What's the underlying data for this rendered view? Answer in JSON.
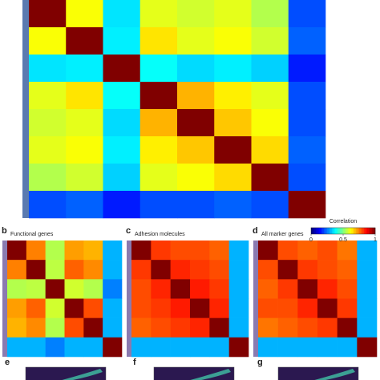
{
  "chart_data": [
    {
      "type": "heatmap",
      "colormap": "jet",
      "values": [
        [
          1,
          0.62,
          0.35,
          0.6,
          0.58,
          0.6,
          0.55,
          0.2
        ],
        [
          0.62,
          1,
          0.36,
          0.65,
          0.6,
          0.62,
          0.58,
          0.22
        ],
        [
          0.35,
          0.36,
          1,
          0.38,
          0.34,
          0.36,
          0.33,
          0.15
        ],
        [
          0.6,
          0.65,
          0.38,
          1,
          0.7,
          0.64,
          0.6,
          0.2
        ],
        [
          0.58,
          0.6,
          0.34,
          0.7,
          1,
          0.68,
          0.62,
          0.2
        ],
        [
          0.6,
          0.62,
          0.36,
          0.64,
          0.68,
          1,
          0.66,
          0.22
        ],
        [
          0.55,
          0.58,
          0.33,
          0.6,
          0.62,
          0.66,
          1,
          0.2
        ],
        [
          0.2,
          0.22,
          0.15,
          0.2,
          0.2,
          0.22,
          0.2,
          1
        ]
      ],
      "colorbar": {
        "title": "Correlation",
        "lim": [
          0,
          1
        ],
        "ticks": [
          0,
          0.5,
          1
        ]
      }
    },
    {
      "type": "heatmap",
      "panel": "b",
      "title": "Functional genes",
      "colormap": "jet",
      "values": [
        [
          1,
          0.75,
          0.55,
          0.72,
          0.7,
          0.3
        ],
        [
          0.75,
          1,
          0.56,
          0.78,
          0.74,
          0.3
        ],
        [
          0.55,
          0.56,
          1,
          0.58,
          0.55,
          0.25
        ],
        [
          0.72,
          0.78,
          0.58,
          1,
          0.8,
          0.3
        ],
        [
          0.7,
          0.74,
          0.55,
          0.8,
          1,
          0.3
        ],
        [
          0.3,
          0.3,
          0.25,
          0.3,
          0.3,
          1
        ]
      ]
    },
    {
      "type": "heatmap",
      "panel": "c",
      "title": "Adhesion molecules",
      "colormap": "jet",
      "values": [
        [
          1,
          0.82,
          0.8,
          0.8,
          0.78,
          0.3
        ],
        [
          0.82,
          1,
          0.84,
          0.82,
          0.8,
          0.3
        ],
        [
          0.8,
          0.84,
          1,
          0.85,
          0.82,
          0.3
        ],
        [
          0.8,
          0.82,
          0.85,
          1,
          0.84,
          0.3
        ],
        [
          0.78,
          0.8,
          0.82,
          0.84,
          1,
          0.3
        ],
        [
          0.3,
          0.3,
          0.3,
          0.3,
          0.3,
          1
        ]
      ]
    },
    {
      "type": "heatmap",
      "panel": "d",
      "title": "All marker genes",
      "colormap": "jet",
      "values": [
        [
          1,
          0.8,
          0.78,
          0.8,
          0.76,
          0.3
        ],
        [
          0.8,
          1,
          0.82,
          0.8,
          0.78,
          0.3
        ],
        [
          0.78,
          0.82,
          1,
          0.84,
          0.8,
          0.3
        ],
        [
          0.8,
          0.8,
          0.84,
          1,
          0.82,
          0.3
        ],
        [
          0.76,
          0.78,
          0.8,
          0.82,
          1,
          0.3
        ],
        [
          0.3,
          0.3,
          0.3,
          0.3,
          0.3,
          1
        ]
      ]
    }
  ],
  "panel_labels": [
    "e",
    "f",
    "g"
  ]
}
